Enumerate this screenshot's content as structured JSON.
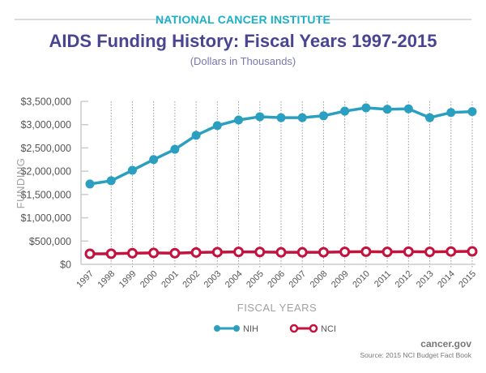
{
  "header": {
    "organization": "NATIONAL CANCER INSTITUTE",
    "title": "AIDS Funding History: Fiscal Years 1997-2015",
    "subtitle": "(Dollars in Thousands)"
  },
  "footer": {
    "site": "cancer.gov",
    "source": "Source: 2015 NCI Budget Fact Book"
  },
  "colors": {
    "nih": "#2a9fbf",
    "nci": "#c4123e",
    "organization": "#1ab0c8",
    "title": "#4a4592",
    "subtitle": "#7a76b0"
  },
  "chart_data": {
    "type": "line",
    "title": "AIDS Funding History: Fiscal Years 1997-2015",
    "subtitle": "(Dollars in Thousands)",
    "xlabel": "FISCAL YEARS",
    "ylabel": "FUNDING",
    "x": [
      "1997",
      "1998",
      "1999",
      "2000",
      "2001",
      "2002",
      "2003",
      "2004",
      "2005",
      "2006",
      "2007",
      "2008",
      "2009",
      "2010",
      "2011",
      "2012",
      "2013",
      "2014",
      "2015"
    ],
    "ylim": [
      0,
      3500000
    ],
    "yticks": [
      0,
      500000,
      1000000,
      1500000,
      2000000,
      2500000,
      3000000,
      3500000
    ],
    "ytick_labels": [
      "$0",
      "$500,000",
      "$1,000,000",
      "$1,500,000",
      "$2,000,000",
      "$2,500,000",
      "$3,000,000",
      "$3,500,000"
    ],
    "grid": "vertical dotted",
    "legend_position": "bottom-center",
    "series": [
      {
        "name": "NIH",
        "marker": "filled-circle",
        "values": [
          1725000,
          1795000,
          2020000,
          2250000,
          2470000,
          2770000,
          2980000,
          3100000,
          3170000,
          3150000,
          3150000,
          3190000,
          3290000,
          3360000,
          3330000,
          3340000,
          3150000,
          3260000,
          3280000
        ]
      },
      {
        "name": "NCI",
        "marker": "hollow-circle",
        "values": [
          226000,
          228000,
          240000,
          245000,
          240000,
          255000,
          262000,
          268000,
          265000,
          258000,
          258000,
          260000,
          268000,
          272000,
          268000,
          272000,
          268000,
          275000,
          278000
        ]
      }
    ]
  }
}
